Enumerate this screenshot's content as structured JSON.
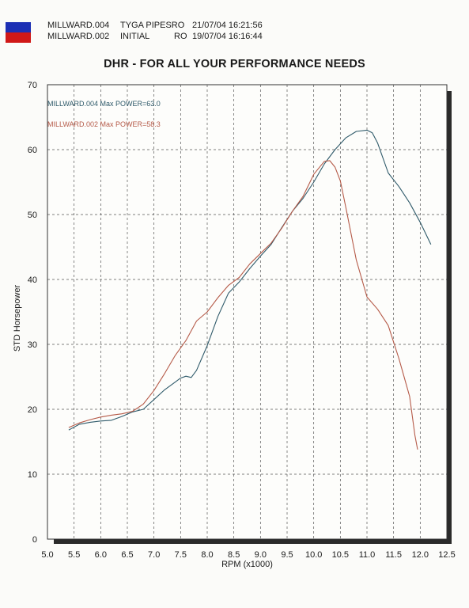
{
  "header": {
    "runs": [
      {
        "file": "MILLWARD.004",
        "desc": "TYGA PIPESRO",
        "date": "21/07/04 16:21:56"
      },
      {
        "file": "MILLWARD.002",
        "desc": "INITIAL",
        "code": "RO",
        "date": "19/07/04 16:16:44"
      }
    ],
    "flag_colors": {
      "top": "#1c2fb4",
      "bottom": "#d01818"
    }
  },
  "chart_data": {
    "type": "line",
    "title": "DHR - FOR ALL YOUR PERFORMANCE NEEDS",
    "xlabel": "RPM (x1000)",
    "ylabel": "STD Horsepower",
    "xlim": [
      5.0,
      12.5
    ],
    "ylim": [
      0,
      70
    ],
    "x_ticks": [
      "5.0",
      "5.5",
      "6.0",
      "6.5",
      "7.0",
      "7.5",
      "8.0",
      "8.5",
      "9.0",
      "9.5",
      "10.0",
      "10.5",
      "11.0",
      "11.5",
      "12.0",
      "12.5"
    ],
    "y_ticks": [
      "0",
      "10",
      "20",
      "30",
      "40",
      "50",
      "60",
      "70"
    ],
    "grid": true,
    "legend_placement": "top-left",
    "series": [
      {
        "name": "MILLWARD.004",
        "legend": "MILLWARD.004  Max POWER=63.0",
        "color": "#2f5a6a",
        "x": [
          5.4,
          5.6,
          5.8,
          6.0,
          6.2,
          6.4,
          6.6,
          6.8,
          7.0,
          7.2,
          7.4,
          7.5,
          7.6,
          7.7,
          7.8,
          8.0,
          8.2,
          8.4,
          8.6,
          8.8,
          9.0,
          9.2,
          9.4,
          9.6,
          9.8,
          10.0,
          10.2,
          10.4,
          10.6,
          10.8,
          11.0,
          11.1,
          11.2,
          11.4,
          11.6,
          11.8,
          12.0,
          12.2
        ],
        "values": [
          16.8,
          17.7,
          18.0,
          18.2,
          18.3,
          18.9,
          19.6,
          20.0,
          21.5,
          23.0,
          24.2,
          24.8,
          25.1,
          24.9,
          26.0,
          29.8,
          34.3,
          37.9,
          39.6,
          41.7,
          43.6,
          45.4,
          48.0,
          50.5,
          52.5,
          55.0,
          57.8,
          60.0,
          61.8,
          62.8,
          63.0,
          62.6,
          61.0,
          56.4,
          54.3,
          51.8,
          48.8,
          45.4
        ]
      },
      {
        "name": "MILLWARD.002",
        "legend": "MILLWARD.002  Max POWER=58.3",
        "color": "#b55a48",
        "x": [
          5.4,
          5.6,
          5.8,
          6.0,
          6.2,
          6.4,
          6.6,
          6.8,
          7.0,
          7.2,
          7.4,
          7.6,
          7.8,
          8.0,
          8.2,
          8.4,
          8.6,
          8.8,
          9.0,
          9.2,
          9.4,
          9.6,
          9.8,
          10.0,
          10.2,
          10.3,
          10.4,
          10.5,
          10.6,
          10.8,
          11.0,
          11.2,
          11.4,
          11.6,
          11.8,
          11.9,
          11.95
        ],
        "values": [
          17.2,
          17.9,
          18.4,
          18.8,
          19.1,
          19.3,
          19.7,
          20.8,
          22.9,
          25.5,
          28.3,
          30.6,
          33.6,
          35.0,
          37.2,
          39.1,
          40.3,
          42.4,
          44.0,
          45.6,
          47.9,
          50.5,
          52.8,
          56.2,
          58.2,
          58.3,
          57.3,
          55.2,
          51.2,
          43.0,
          37.3,
          35.4,
          32.9,
          27.8,
          22.0,
          16.0,
          13.8
        ]
      }
    ]
  }
}
